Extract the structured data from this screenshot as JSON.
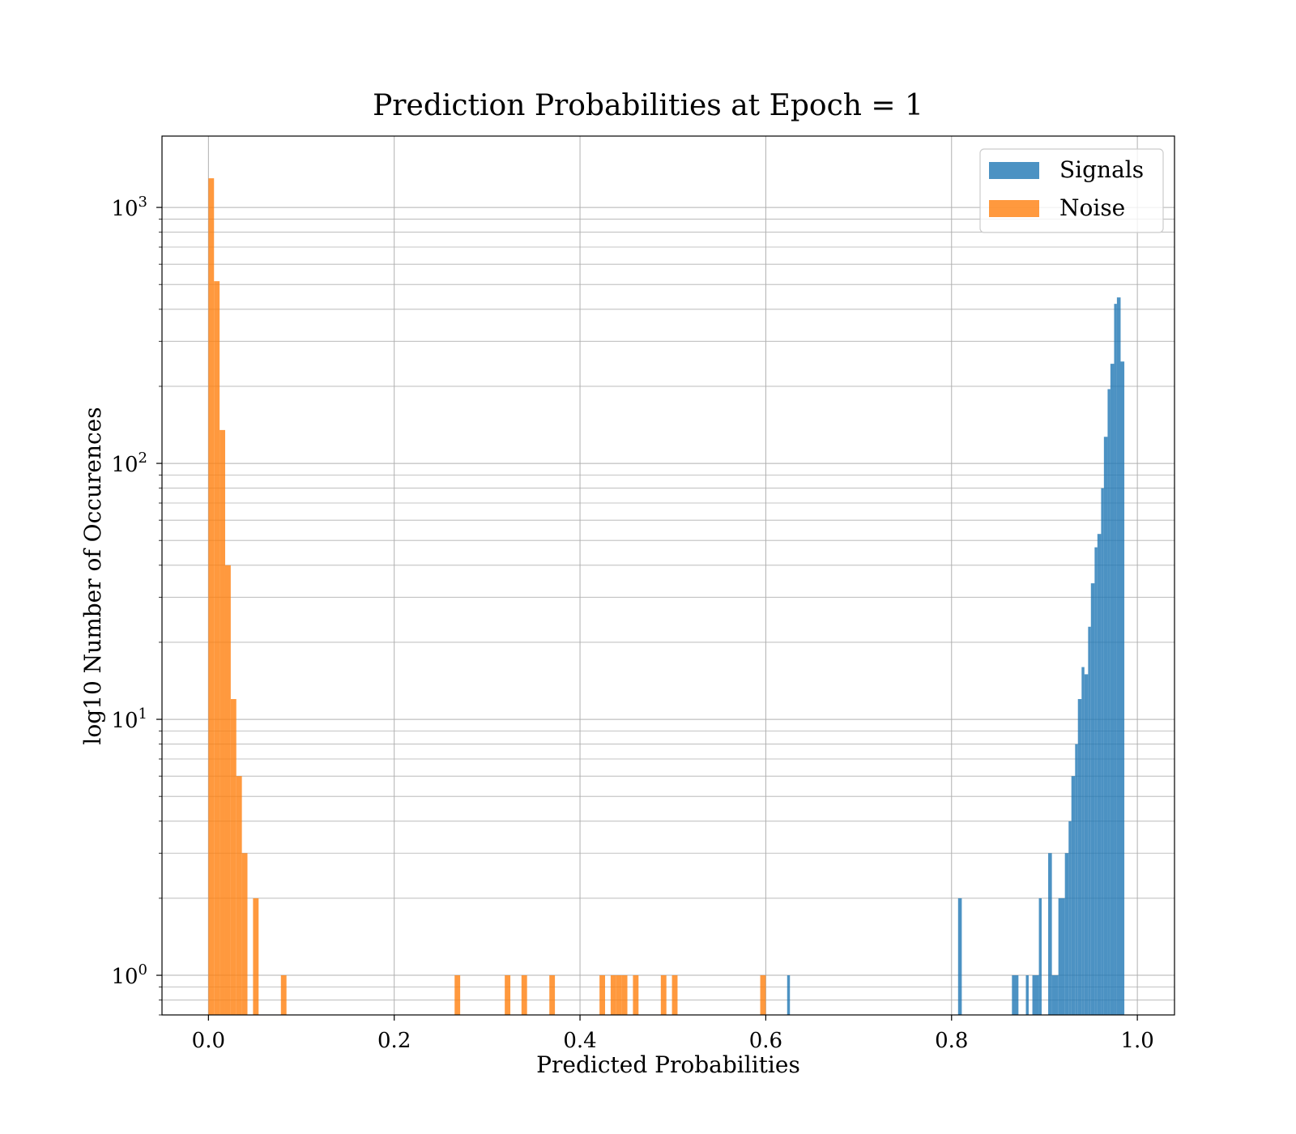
{
  "chart_data": {
    "type": "bar",
    "title": "Prediction Probabilities at Epoch = 1",
    "xlabel": "Predicted Probabilities",
    "ylabel": "log10 Number of Occurences",
    "xlim": [
      -0.05,
      1.04
    ],
    "ylim": [
      0.7,
      1900
    ],
    "yscale": "log",
    "grid": true,
    "legend_position": "top-right",
    "x_ticks": [
      0.0,
      0.2,
      0.4,
      0.6,
      0.8,
      1.0
    ],
    "x_tick_labels": [
      "0.0",
      "0.2",
      "0.4",
      "0.6",
      "0.8",
      "1.0"
    ],
    "y_ticks": [
      1,
      10,
      100,
      1000
    ],
    "y_tick_bases": [
      "10",
      "10",
      "10",
      "10"
    ],
    "y_tick_exponents": [
      "0",
      "1",
      "2",
      "3"
    ],
    "series": [
      {
        "name": "Signals",
        "color": "#1f77b4",
        "opacity": 0.8,
        "bins": [
          {
            "x0": 0.623,
            "x1": 0.626,
            "count": 1
          },
          {
            "x0": 0.807,
            "x1": 0.811,
            "count": 2
          },
          {
            "x0": 0.865,
            "x1": 0.872,
            "count": 1
          },
          {
            "x0": 0.88,
            "x1": 0.883,
            "count": 1
          },
          {
            "x0": 0.887,
            "x1": 0.894,
            "count": 1
          },
          {
            "x0": 0.894,
            "x1": 0.897,
            "count": 2
          },
          {
            "x0": 0.904,
            "x1": 0.908,
            "count": 3
          },
          {
            "x0": 0.908,
            "x1": 0.915,
            "count": 1
          },
          {
            "x0": 0.915,
            "x1": 0.922,
            "count": 2
          },
          {
            "x0": 0.922,
            "x1": 0.926,
            "count": 3
          },
          {
            "x0": 0.926,
            "x1": 0.929,
            "count": 4
          },
          {
            "x0": 0.929,
            "x1": 0.933,
            "count": 6
          },
          {
            "x0": 0.933,
            "x1": 0.936,
            "count": 8
          },
          {
            "x0": 0.936,
            "x1": 0.94,
            "count": 12
          },
          {
            "x0": 0.94,
            "x1": 0.943,
            "count": 16
          },
          {
            "x0": 0.943,
            "x1": 0.947,
            "count": 15
          },
          {
            "x0": 0.947,
            "x1": 0.95,
            "count": 23
          },
          {
            "x0": 0.95,
            "x1": 0.954,
            "count": 34
          },
          {
            "x0": 0.954,
            "x1": 0.957,
            "count": 47
          },
          {
            "x0": 0.957,
            "x1": 0.961,
            "count": 53
          },
          {
            "x0": 0.961,
            "x1": 0.964,
            "count": 80
          },
          {
            "x0": 0.964,
            "x1": 0.968,
            "count": 127
          },
          {
            "x0": 0.968,
            "x1": 0.971,
            "count": 195
          },
          {
            "x0": 0.971,
            "x1": 0.975,
            "count": 245
          },
          {
            "x0": 0.975,
            "x1": 0.978,
            "count": 420
          },
          {
            "x0": 0.978,
            "x1": 0.982,
            "count": 445
          },
          {
            "x0": 0.982,
            "x1": 0.986,
            "count": 250
          }
        ]
      },
      {
        "name": "Noise",
        "color": "#ff7f0e",
        "opacity": 0.8,
        "bins": [
          {
            "x0": 0.0,
            "x1": 0.006,
            "count": 1300
          },
          {
            "x0": 0.006,
            "x1": 0.012,
            "count": 515
          },
          {
            "x0": 0.012,
            "x1": 0.018,
            "count": 135
          },
          {
            "x0": 0.018,
            "x1": 0.024,
            "count": 40
          },
          {
            "x0": 0.024,
            "x1": 0.03,
            "count": 12
          },
          {
            "x0": 0.03,
            "x1": 0.036,
            "count": 6
          },
          {
            "x0": 0.036,
            "x1": 0.042,
            "count": 3
          },
          {
            "x0": 0.048,
            "x1": 0.054,
            "count": 2
          },
          {
            "x0": 0.078,
            "x1": 0.084,
            "count": 1
          },
          {
            "x0": 0.265,
            "x1": 0.271,
            "count": 1
          },
          {
            "x0": 0.319,
            "x1": 0.325,
            "count": 1
          },
          {
            "x0": 0.337,
            "x1": 0.343,
            "count": 1
          },
          {
            "x0": 0.367,
            "x1": 0.373,
            "count": 1
          },
          {
            "x0": 0.421,
            "x1": 0.427,
            "count": 1
          },
          {
            "x0": 0.433,
            "x1": 0.439,
            "count": 1
          },
          {
            "x0": 0.439,
            "x1": 0.445,
            "count": 1
          },
          {
            "x0": 0.445,
            "x1": 0.451,
            "count": 1
          },
          {
            "x0": 0.457,
            "x1": 0.463,
            "count": 1
          },
          {
            "x0": 0.487,
            "x1": 0.493,
            "count": 1
          },
          {
            "x0": 0.499,
            "x1": 0.505,
            "count": 1
          },
          {
            "x0": 0.594,
            "x1": 0.6,
            "count": 1
          }
        ]
      }
    ]
  }
}
